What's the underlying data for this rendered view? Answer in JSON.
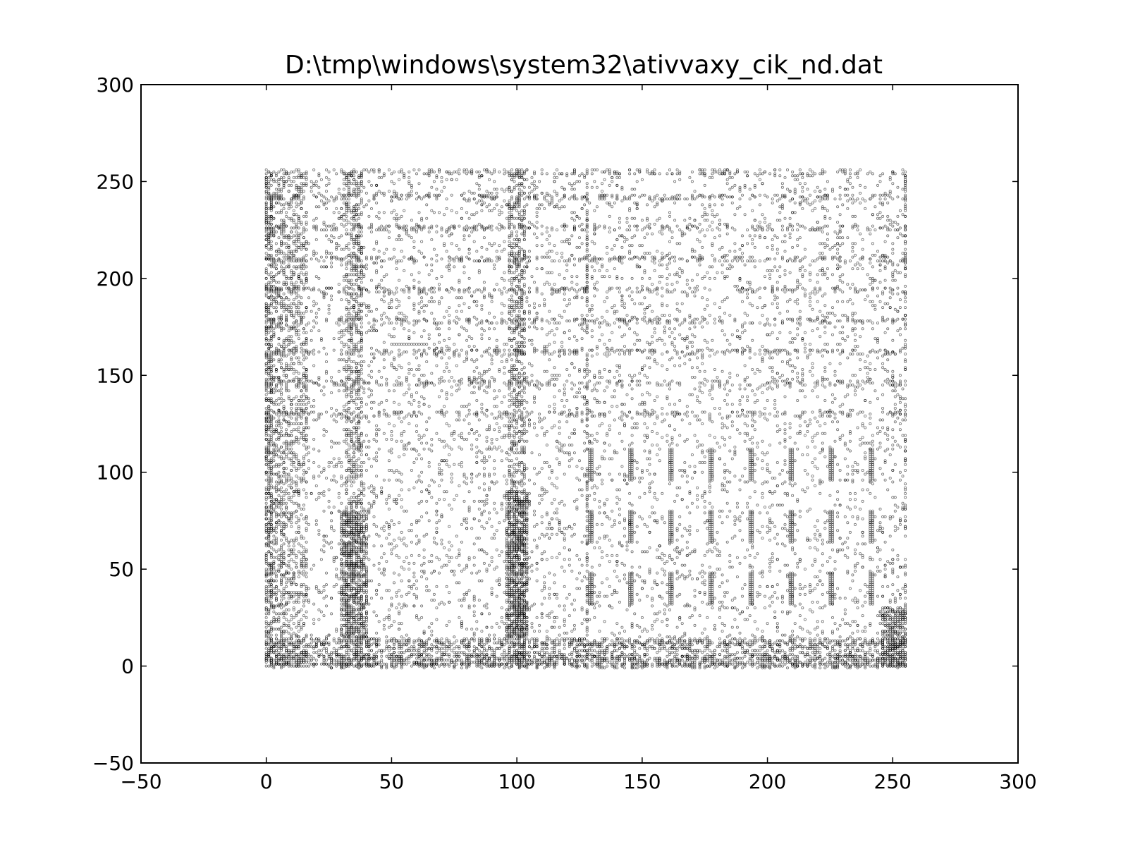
{
  "chart_data": {
    "type": "scatter",
    "title": "D:\\tmp\\windows\\system32\\ativvaxy_cik_nd.dat",
    "xlabel": "",
    "ylabel": "",
    "xlim": [
      -50,
      300
    ],
    "ylim": [
      -50,
      300
    ],
    "xticks": [
      -50,
      0,
      50,
      100,
      150,
      200,
      250,
      300
    ],
    "yticks": [
      -50,
      0,
      50,
      100,
      150,
      200,
      250,
      300
    ],
    "xtick_labels": [
      "−50",
      "0",
      "50",
      "100",
      "150",
      "200",
      "250",
      "300"
    ],
    "ytick_labels": [
      "−50",
      "0",
      "50",
      "100",
      "150",
      "200",
      "250",
      "300"
    ],
    "grid": false,
    "legend": "none",
    "marker_color": "#000000",
    "marker_shape": "small hollow circle",
    "data_extent": {
      "x": [
        0,
        255
      ],
      "y": [
        0,
        255
      ]
    },
    "dense_rows_y": [
      0,
      2,
      4,
      12,
      130,
      146,
      162,
      178,
      194,
      210,
      226,
      242,
      255
    ],
    "dense_columns_x": [
      0,
      1,
      2,
      32,
      33,
      34,
      35,
      36,
      37,
      38,
      97,
      98,
      99,
      100,
      101,
      102,
      103,
      128,
      255
    ],
    "short_vertical_segments": [
      {
        "x": 129,
        "y": [
          96,
          112
        ]
      },
      {
        "x": 145,
        "y": [
          96,
          112
        ]
      },
      {
        "x": 161,
        "y": [
          96,
          112
        ]
      },
      {
        "x": 177,
        "y": [
          96,
          112
        ]
      },
      {
        "x": 193,
        "y": [
          96,
          112
        ]
      },
      {
        "x": 209,
        "y": [
          96,
          112
        ]
      },
      {
        "x": 225,
        "y": [
          96,
          112
        ]
      },
      {
        "x": 241,
        "y": [
          96,
          112
        ]
      },
      {
        "x": 129,
        "y": [
          32,
          48
        ]
      },
      {
        "x": 145,
        "y": [
          32,
          48
        ]
      },
      {
        "x": 161,
        "y": [
          32,
          48
        ]
      },
      {
        "x": 177,
        "y": [
          32,
          48
        ]
      },
      {
        "x": 193,
        "y": [
          32,
          48
        ]
      },
      {
        "x": 209,
        "y": [
          32,
          48
        ]
      },
      {
        "x": 225,
        "y": [
          32,
          48
        ]
      },
      {
        "x": 241,
        "y": [
          32,
          48
        ]
      },
      {
        "x": 129,
        "y": [
          64,
          80
        ]
      },
      {
        "x": 145,
        "y": [
          64,
          80
        ]
      },
      {
        "x": 161,
        "y": [
          64,
          80
        ]
      },
      {
        "x": 177,
        "y": [
          64,
          80
        ]
      },
      {
        "x": 193,
        "y": [
          64,
          80
        ]
      },
      {
        "x": 209,
        "y": [
          64,
          80
        ]
      },
      {
        "x": 225,
        "y": [
          64,
          80
        ]
      },
      {
        "x": 241,
        "y": [
          64,
          80
        ]
      }
    ],
    "short_horizontal_segments": [
      {
        "y": 166,
        "x": [
          50,
          64
        ]
      }
    ],
    "point_cloud_density": "high",
    "point_cloud_note": "byte-pair scatter: each point is (byte[i], byte[i+1])"
  }
}
